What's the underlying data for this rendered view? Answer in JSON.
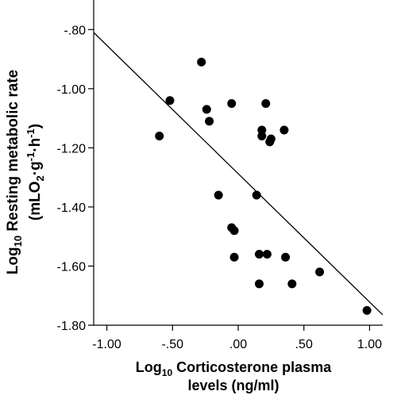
{
  "chart_data": {
    "type": "scatter",
    "title": "",
    "xlabel": {
      "prefix": "Log",
      "prefix_sub": "10",
      "line1": "Corticosterone plasma",
      "line2": "levels (ng/ml)"
    },
    "ylabel": {
      "line1_prefix": "Log",
      "line1_sub": "10",
      "line1_rest": "Resting metabolic rate",
      "line2": [
        "(mLO",
        "2",
        "·g",
        "-1",
        "·h",
        "-1",
        ")"
      ]
    },
    "xlim": [
      -1.1,
      1.1
    ],
    "ylim": [
      -1.8,
      -0.7
    ],
    "x_ticks": [
      -1.0,
      -0.5,
      0.0,
      0.5,
      1.0
    ],
    "x_tick_labels": [
      "-1.00",
      "-.50",
      ".00",
      ".50",
      "1.00"
    ],
    "y_ticks": [
      -0.8,
      -1.0,
      -1.2,
      -1.4,
      -1.6,
      -1.8
    ],
    "y_tick_labels": [
      "-.80",
      "-1.00",
      "-1.20",
      "-1.40",
      "-1.60",
      "-1.80"
    ],
    "grid": false,
    "legend": "none",
    "marker_color": "#000000",
    "points": [
      {
        "x": -0.6,
        "y": -1.16
      },
      {
        "x": -0.52,
        "y": -1.04
      },
      {
        "x": -0.28,
        "y": -0.91
      },
      {
        "x": -0.24,
        "y": -1.07
      },
      {
        "x": -0.22,
        "y": -1.11
      },
      {
        "x": -0.15,
        "y": -1.36
      },
      {
        "x": -0.05,
        "y": -1.05
      },
      {
        "x": -0.05,
        "y": -1.47
      },
      {
        "x": -0.03,
        "y": -1.48
      },
      {
        "x": -0.03,
        "y": -1.57
      },
      {
        "x": 0.14,
        "y": -1.36
      },
      {
        "x": 0.16,
        "y": -1.56
      },
      {
        "x": 0.16,
        "y": -1.66
      },
      {
        "x": 0.18,
        "y": -1.14
      },
      {
        "x": 0.18,
        "y": -1.16
      },
      {
        "x": 0.21,
        "y": -1.05
      },
      {
        "x": 0.22,
        "y": -1.56
      },
      {
        "x": 0.24,
        "y": -1.18
      },
      {
        "x": 0.25,
        "y": -1.17
      },
      {
        "x": 0.35,
        "y": -1.14
      },
      {
        "x": 0.36,
        "y": -1.57
      },
      {
        "x": 0.41,
        "y": -1.66
      },
      {
        "x": 0.62,
        "y": -1.62
      },
      {
        "x": 0.98,
        "y": -1.75
      }
    ],
    "fit_line": {
      "x": [
        -1.1,
        1.1
      ],
      "y": [
        -0.81,
        -1.765
      ]
    }
  }
}
